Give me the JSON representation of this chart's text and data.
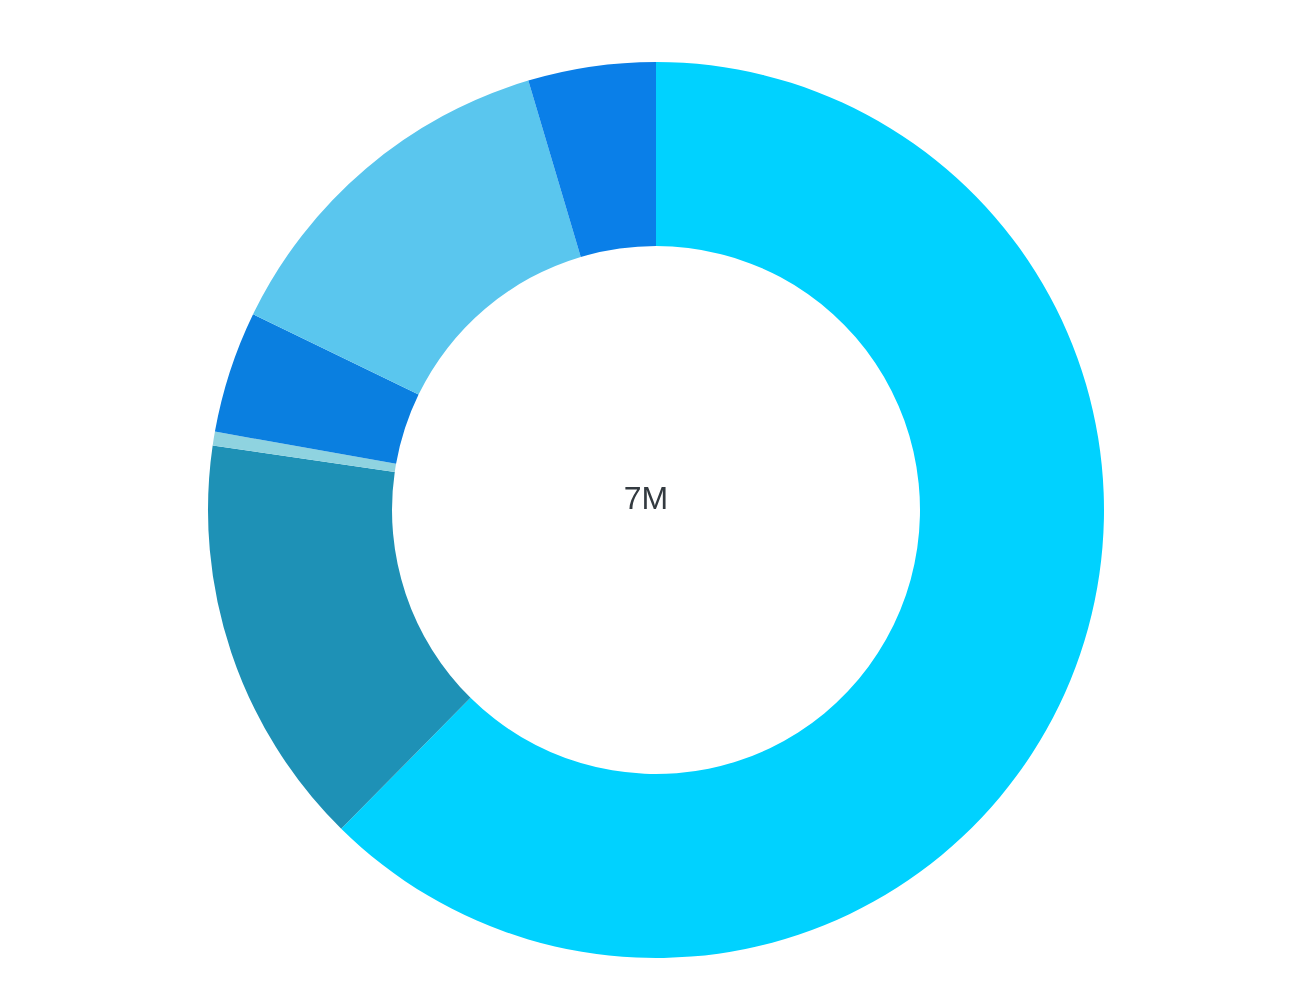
{
  "chart_data": {
    "type": "donut",
    "categories": [
      null,
      null,
      null,
      null,
      null,
      null
    ],
    "values": [
      62.4,
      14.9,
      0.5,
      4.4,
      13.2,
      4.6
    ],
    "colors": [
      "#00d2ff",
      "#1e91b6",
      "#8fd3e0",
      "#0a7fe0",
      "#5ac6ee",
      "#0a7fe8"
    ],
    "annotations": [
      "7M"
    ]
  }
}
